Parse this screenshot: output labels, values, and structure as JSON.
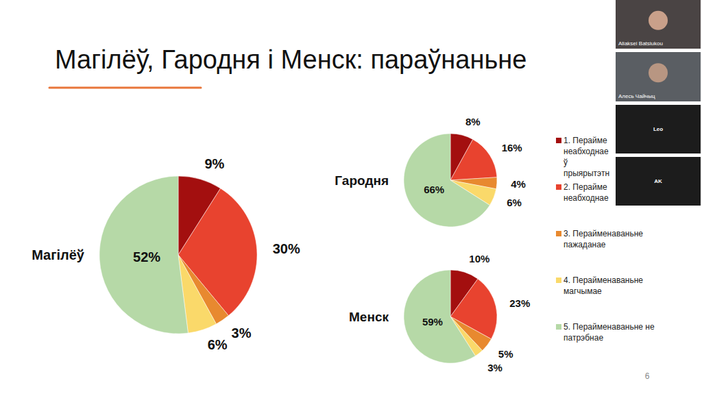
{
  "slide": {
    "title": "Магілёў, Гародня і Менск: параўнаньне",
    "page_number": "6",
    "participants": [
      "Aliaksei Batsiukou",
      "Алесь Чайчыц",
      "Leo",
      "AK"
    ]
  },
  "chart_data": [
    {
      "type": "pie",
      "title": "Магілёў",
      "categories": [
        "1. Перайме неабходнае ў прыярытэтн",
        "2. Перайме неабходнае",
        "3. Перайменаваньне пажаданае",
        "4. Перайменаваньне магчымае",
        "5. Перайменаваньне не патрэбнае"
      ],
      "values": [
        9,
        30,
        3,
        6,
        52
      ],
      "value_labels": [
        "9%",
        "30%",
        "3%",
        "6%",
        "52%"
      ],
      "colors": [
        "#a30f0f",
        "#e8432f",
        "#e8892f",
        "#fad96a",
        "#b6d9a7"
      ],
      "data_labels": true,
      "legend": "right"
    },
    {
      "type": "pie",
      "title": "Гародня",
      "values": [
        8,
        16,
        4,
        6,
        66
      ],
      "value_labels": [
        "8%",
        "16%",
        "4%",
        "6%",
        "66%"
      ],
      "colors": [
        "#a30f0f",
        "#e8432f",
        "#e8892f",
        "#fad96a",
        "#b6d9a7"
      ],
      "data_labels": true
    },
    {
      "type": "pie",
      "title": "Менск",
      "values": [
        10,
        23,
        5,
        3,
        59
      ],
      "value_labels": [
        "10%",
        "23%",
        "5%",
        "3%",
        "59%"
      ],
      "colors": [
        "#a30f0f",
        "#e8432f",
        "#e8892f",
        "#fad96a",
        "#b6d9a7"
      ],
      "data_labels": true
    }
  ]
}
